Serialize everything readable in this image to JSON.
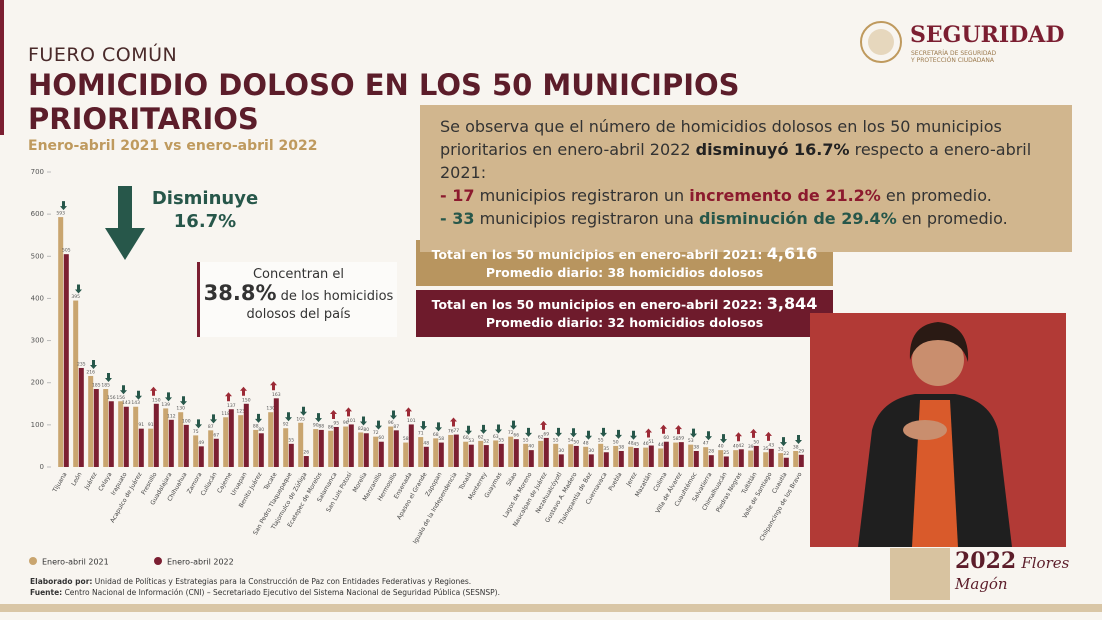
{
  "header": {
    "section": "FUERO COMÚN",
    "title": [
      "HOMICIDIO DOLOSO EN LOS 50 MUNICIPIOS",
      "PRIORITARIOS"
    ],
    "subtitle": "Enero-abril 2021 vs enero-abril 2022"
  },
  "logo": {
    "name": "SEGURIDAD",
    "subtitle": [
      "SECRETARÍA DE SEGURIDAD",
      "Y PROTECCIÓN CIUDADANA"
    ]
  },
  "summary": {
    "intro": [
      "Se observa que el número de homicidios dolosos en los 50 municipios prioritarios en enero-abril 2022 ",
      "disminuyó 16.7%",
      " respecto a enero-abril 2021:"
    ],
    "items": [
      [
        "- 17",
        " municipios registraron un ",
        "incremento de 21.2%",
        " en promedio."
      ],
      [
        "- 33",
        " municipios registraron una ",
        "disminución de 29.4%",
        " en promedio."
      ]
    ]
  },
  "totals": [
    {
      "line1": "Total en los 50 municipios en enero-abril 2021: ",
      "total": "4,616",
      "line2": "Promedio diario: 38 homicidios dolosos"
    },
    {
      "line1": "Total en los 50 municipios en enero-abril 2022: ",
      "total": "3,844",
      "line2": "Promedio diario: 32 homicidios dolosos"
    }
  ],
  "callout": {
    "label": "Disminuye",
    "value": "16.7%"
  },
  "concentration": {
    "before": "Concentran el",
    "value": "38.8%",
    "after": " de los homicidios dolosos del país"
  },
  "footer": {
    "elaborated": [
      "Elaborado por:",
      " Unidad de Políticas y Estrategias para la Construcción de Paz con Entidades Federativas y Regiones."
    ],
    "source": [
      "Fuente:",
      " Centro Nacional de Información (CNI) – Secretariado Ejecutivo del Sistema Nacional de Seguridad Pública (SESNSP)."
    ]
  },
  "badge": {
    "year": "2022",
    "text": "Flores Magón"
  },
  "chart_data": {
    "type": "bar",
    "categories": [
      "Tijuana",
      "León",
      "Juárez",
      "Celaya",
      "Irapuato",
      "Acapulco de Juárez",
      "Fresnillo",
      "Guadalajara",
      "Chihuahua",
      "Zamora",
      "Culiacán",
      "Cajeme",
      "Uruapan",
      "Benito Juárez",
      "Tecate",
      "San Pedro Tlaquepaque",
      "Tlajomulco de Zúñiga",
      "Ecatepec de Morelos",
      "Salamanca",
      "San Luis Potosí",
      "Morelia",
      "Manzanillo",
      "Hermosillo",
      "Ensenada",
      "Apaseo el Grande",
      "Zapopan",
      "Iguala de la Independencia",
      "Tonalá",
      "Monterrey",
      "Guaymas",
      "Silao",
      "Lagos de Moreno",
      "Naucalpan de Juárez",
      "Nezahualcóyotl",
      "Gustavo A. Madero",
      "Tlalnepantla de Baz",
      "Cuernavaca",
      "Puebla",
      "Jerez",
      "Mazatlán",
      "Colima",
      "Villa de Álvarez",
      "Cuauhtémoc",
      "Salvatierra",
      "Chimalhuacán",
      "Piedras Negras",
      "Tultitlán",
      "Valle de Santiago",
      "Cuautla",
      "Chilpancingo de los Bravo"
    ],
    "series": [
      {
        "name": "Enero-abril 2021",
        "color": "#c9a56f",
        "values": [
          593,
          395,
          216,
          185,
          156,
          143,
          91,
          139,
          130,
          75,
          87,
          118,
          123,
          88,
          130,
          92,
          105,
          90,
          86,
          96,
          82,
          72,
          96,
          58,
          71,
          68,
          76,
          60,
          62,
          63,
          72,
          55,
          62,
          55,
          54,
          48,
          55,
          50,
          48,
          46,
          44,
          58,
          53,
          47,
          40,
          40,
          39,
          35,
          33,
          38
        ]
      },
      {
        "name": "Enero-abril 2022",
        "color": "#7b1e31",
        "values": [
          505,
          235,
          185,
          156,
          143,
          91,
          150,
          112,
          100,
          49,
          67,
          137,
          150,
          80,
          163,
          55,
          26,
          88,
          95,
          101,
          80,
          60,
          87,
          101,
          48,
          58,
          77,
          53,
          52,
          55,
          66,
          40,
          69,
          30,
          50,
          30,
          35,
          38,
          45,
          51,
          60,
          59,
          38,
          28,
          25,
          42,
          50,
          43,
          22,
          29
        ]
      }
    ],
    "ylim": [
      0,
      700
    ],
    "yticks": [
      0,
      100,
      200,
      300,
      400,
      500,
      600,
      700
    ]
  }
}
